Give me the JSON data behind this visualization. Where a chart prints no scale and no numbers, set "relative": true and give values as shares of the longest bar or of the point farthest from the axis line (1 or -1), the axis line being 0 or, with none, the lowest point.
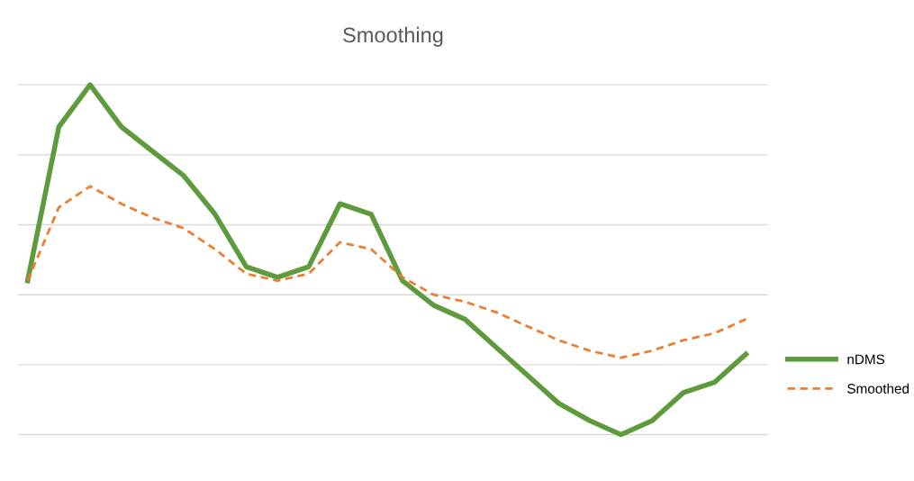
{
  "chart_data": {
    "type": "line",
    "title": "Smoothing",
    "relative": true,
    "grid": "y",
    "legend": "right",
    "tick_labels": false,
    "categories": [
      null,
      null,
      null,
      null,
      null,
      null,
      null,
      null,
      null,
      null,
      null,
      null,
      null,
      null,
      null,
      null,
      null,
      null,
      null,
      null,
      null,
      null,
      null,
      null
    ],
    "series": [
      {
        "name": "nDMS",
        "color": "#5e9b3c",
        "line_style": "solid",
        "values": [
          0.44,
          0.88,
          1,
          0.88,
          0.81,
          0.74,
          0.63,
          0.48,
          0.45,
          0.48,
          0.66,
          0.63,
          0.44,
          0.37,
          0.33,
          0.25,
          0.17,
          0.09,
          0.04,
          0,
          0.04,
          0.12,
          0.15,
          0.23
        ]
      },
      {
        "name": "Smoothed",
        "color": "#ed7d31",
        "line_style": "dashed",
        "values": [
          0.44,
          0.65,
          0.71,
          0.66,
          0.62,
          0.59,
          0.53,
          0.46,
          0.44,
          0.46,
          0.55,
          0.53,
          0.45,
          0.4,
          0.38,
          0.35,
          0.31,
          0.27,
          0.24,
          0.22,
          0.24,
          0.27,
          0.29,
          0.33
        ]
      }
    ]
  }
}
